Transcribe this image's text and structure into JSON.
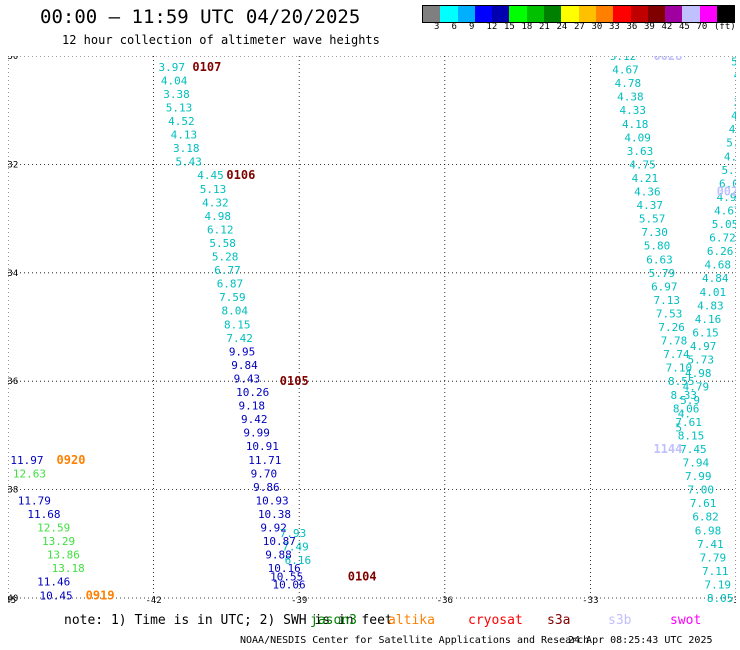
{
  "header": {
    "title": "00:00 – 11:59 UTC 04/20/2025",
    "subtitle": "12 hour collection of altimeter wave heights"
  },
  "colorbar": {
    "colors": [
      "#7f7f7f",
      "#00ffff",
      "#00b0ff",
      "#0000ff",
      "#0000b0",
      "#00ff00",
      "#00c000",
      "#008000",
      "#ffff00",
      "#ffc000",
      "#ff8000",
      "#ff0000",
      "#c00000",
      "#800000",
      "#a000a0",
      "#c0c0ff",
      "#ff00ff",
      "#000000"
    ],
    "labels": [
      "3",
      "6",
      "9",
      "12",
      "15",
      "18",
      "21",
      "24",
      "27",
      "30",
      "33",
      "36",
      "39",
      "42",
      "45",
      "70",
      "(ft)"
    ]
  },
  "chart_data": {
    "type": "scatter",
    "xlim": [
      -45,
      -30
    ],
    "ylim": [
      -40,
      -30
    ],
    "x_ticks": [
      -45,
      -42,
      -39,
      -36,
      -33,
      -30
    ],
    "y_ticks": [
      -30,
      -32,
      -34,
      -36,
      -38,
      -40
    ],
    "x_tick_labels": [
      "-45",
      "-42",
      "-39",
      "-36",
      "-33",
      "-30"
    ],
    "y_tick_labels": [
      "-30",
      "-32",
      "-34",
      "-36",
      "-38",
      "-40"
    ],
    "grid": true,
    "legend_placement": "bottom",
    "series": [
      {
        "color": "#00bfbf",
        "points": [
          [
            -41.9,
            -30.2,
            "3.97"
          ],
          [
            -41.85,
            -30.45,
            "4.04"
          ],
          [
            -41.8,
            -30.7,
            "3.38"
          ],
          [
            -41.75,
            -30.95,
            "5.13"
          ],
          [
            -41.7,
            -31.2,
            "4.52"
          ],
          [
            -41.65,
            -31.45,
            "4.13"
          ],
          [
            -41.6,
            -31.7,
            "3.18"
          ],
          [
            -41.55,
            -31.95,
            "5.43"
          ],
          [
            -41.1,
            -32.2,
            "4.45"
          ],
          [
            -41.05,
            -32.45,
            "5.13"
          ],
          [
            -41.0,
            -32.7,
            "4.32"
          ],
          [
            -40.95,
            -32.95,
            "4.98"
          ],
          [
            -40.9,
            -33.2,
            "6.12"
          ],
          [
            -40.85,
            -33.45,
            "5.58"
          ],
          [
            -40.8,
            -33.7,
            "5.28"
          ],
          [
            -40.75,
            -33.95,
            "6.77"
          ],
          [
            -40.7,
            -34.2,
            "6.87"
          ],
          [
            -40.65,
            -34.45,
            "7.59"
          ],
          [
            -40.6,
            -34.7,
            "8.04"
          ],
          [
            -40.55,
            -34.95,
            "8.15"
          ],
          [
            -40.5,
            -35.2,
            "7.42"
          ],
          [
            -39.4,
            -38.8,
            "7.93"
          ],
          [
            -39.35,
            -39.05,
            "7.49"
          ],
          [
            -39.3,
            -39.3,
            "6.16"
          ]
        ]
      },
      {
        "color": "#0000c0",
        "points": [
          [
            -40.45,
            -35.45,
            "9.95"
          ],
          [
            -40.4,
            -35.7,
            "9.84"
          ],
          [
            -40.35,
            -35.95,
            "9.43"
          ],
          [
            -40.3,
            -36.2,
            "10.26"
          ],
          [
            -40.25,
            -36.45,
            "9.18"
          ],
          [
            -40.2,
            -36.7,
            "9.42"
          ],
          [
            -40.15,
            -36.95,
            "9.99"
          ],
          [
            -40.1,
            -37.2,
            "10.91"
          ],
          [
            -40.05,
            -37.45,
            "11.71"
          ],
          [
            -40.0,
            -37.7,
            "9.70"
          ],
          [
            -39.95,
            -37.95,
            "9.86"
          ],
          [
            -39.9,
            -38.2,
            "10.93"
          ],
          [
            -39.85,
            -38.45,
            "10.38"
          ],
          [
            -39.8,
            -38.7,
            "9.92"
          ],
          [
            -39.75,
            -38.95,
            "10.87"
          ],
          [
            -39.7,
            -39.2,
            "9.88"
          ],
          [
            -39.65,
            -39.45,
            "10.16"
          ],
          [
            -39.6,
            -39.6,
            "10.55"
          ],
          [
            -39.55,
            -39.75,
            "10.06"
          ],
          [
            -44.95,
            -37.45,
            "11.97"
          ],
          [
            -44.8,
            -38.2,
            "11.79"
          ],
          [
            -44.6,
            -38.45,
            "11.68"
          ],
          [
            -44.4,
            -39.7,
            "11.46"
          ],
          [
            -44.35,
            -39.95,
            "10.45"
          ],
          [
            -44.25,
            -40.2,
            "10.23"
          ],
          [
            -44.1,
            -40.45,
            "10.51"
          ],
          [
            -44.0,
            -40.7,
            "9.50"
          ]
        ]
      },
      {
        "color": "#40e040",
        "points": [
          [
            -44.9,
            -37.7,
            "12.63"
          ],
          [
            -44.4,
            -38.7,
            "12.59"
          ],
          [
            -44.3,
            -38.95,
            "13.29"
          ],
          [
            -44.2,
            -39.2,
            "13.86"
          ],
          [
            -44.1,
            -39.45,
            "13.18"
          ]
        ]
      },
      {
        "color": "#00bfbf",
        "points": [
          [
            -32.6,
            -30.0,
            "5.12"
          ],
          [
            -32.55,
            -30.25,
            "4.67"
          ],
          [
            -32.5,
            -30.5,
            "4.78"
          ],
          [
            -32.45,
            -30.75,
            "4.38"
          ],
          [
            -32.4,
            -31.0,
            "4.33"
          ],
          [
            -32.35,
            -31.25,
            "4.18"
          ],
          [
            -32.3,
            -31.5,
            "4.09"
          ],
          [
            -32.25,
            -31.75,
            "3.63"
          ],
          [
            -32.2,
            -32.0,
            "4.75"
          ],
          [
            -32.15,
            -32.25,
            "4.21"
          ],
          [
            -32.1,
            -32.5,
            "4.36"
          ],
          [
            -32.05,
            -32.75,
            "4.37"
          ],
          [
            -32.0,
            -33.0,
            "5.57"
          ],
          [
            -31.95,
            -33.25,
            "7.30"
          ],
          [
            -31.9,
            -33.5,
            "5.80"
          ],
          [
            -31.85,
            -33.75,
            "6.63"
          ],
          [
            -31.8,
            -34.0,
            "5.79"
          ],
          [
            -31.75,
            -34.25,
            "6.97"
          ],
          [
            -31.7,
            -34.5,
            "7.13"
          ],
          [
            -31.65,
            -34.75,
            "7.53"
          ],
          [
            -31.6,
            -35.0,
            "7.26"
          ],
          [
            -31.55,
            -35.25,
            "7.78"
          ],
          [
            -31.5,
            -35.5,
            "7.74"
          ],
          [
            -31.45,
            -35.75,
            "7.10"
          ],
          [
            -31.4,
            -36.0,
            "8.55"
          ],
          [
            -31.35,
            -36.25,
            "8.33"
          ],
          [
            -31.3,
            -36.5,
            "8.06"
          ],
          [
            -31.25,
            -36.75,
            "7.61"
          ],
          [
            -31.2,
            -37.0,
            "8.15"
          ],
          [
            -31.15,
            -37.25,
            "7.45"
          ],
          [
            -31.1,
            -37.5,
            "7.94"
          ],
          [
            -31.05,
            -37.75,
            "7.99"
          ],
          [
            -31.0,
            -38.0,
            "7.00"
          ],
          [
            -30.95,
            -38.25,
            "7.61"
          ],
          [
            -30.9,
            -38.5,
            "6.82"
          ],
          [
            -30.85,
            -38.75,
            "6.98"
          ],
          [
            -30.8,
            -39.0,
            "7.41"
          ],
          [
            -30.75,
            -39.25,
            "7.79"
          ],
          [
            -30.7,
            -39.5,
            "7.11"
          ],
          [
            -30.65,
            -39.75,
            "7.19"
          ],
          [
            -30.6,
            -40.0,
            "8.05"
          ],
          [
            -30.55,
            -40.25,
            "7.50"
          ],
          [
            -30.5,
            -40.5,
            "6.97"
          ],
          [
            -30.1,
            -30.1,
            "5.27"
          ],
          [
            -30.05,
            -30.35,
            "4.33"
          ],
          [
            -30.0,
            -30.6,
            "4.05"
          ],
          [
            -30.05,
            -30.85,
            "3.34"
          ],
          [
            -30.1,
            -31.1,
            "4.47"
          ],
          [
            -30.15,
            -31.35,
            "4.14"
          ],
          [
            -30.2,
            -31.6,
            "5.07"
          ],
          [
            -30.25,
            -31.85,
            "4.85"
          ],
          [
            -30.3,
            -32.1,
            "5.12"
          ],
          [
            -30.35,
            -32.35,
            "6.05"
          ],
          [
            -30.4,
            -32.6,
            "4.91"
          ],
          [
            -30.45,
            -32.85,
            "4.67"
          ],
          [
            -30.5,
            -33.1,
            "5.05"
          ],
          [
            -30.55,
            -33.35,
            "6.72"
          ],
          [
            -30.6,
            -33.6,
            "6.26"
          ],
          [
            -30.65,
            -33.85,
            "4.68"
          ],
          [
            -30.7,
            -34.1,
            "4.84"
          ],
          [
            -30.75,
            -34.35,
            "4.01"
          ],
          [
            -30.8,
            -34.6,
            "4.83"
          ],
          [
            -30.85,
            -34.85,
            "4.16"
          ],
          [
            -30.9,
            -35.1,
            "6.15"
          ],
          [
            -30.95,
            -35.35,
            "4.97"
          ],
          [
            -31.0,
            -35.6,
            "5.73"
          ],
          [
            -31.05,
            -35.85,
            "4.98"
          ],
          [
            -31.1,
            -36.1,
            "4.79"
          ],
          [
            -31.15,
            -36.35,
            "5.9"
          ],
          [
            -31.2,
            -36.6,
            "4."
          ],
          [
            -31.25,
            -36.85,
            "5"
          ]
        ]
      }
    ],
    "pass_labels": [
      {
        "text": "0107",
        "color": "#800000",
        "x": -41.2,
        "y": -30.2
      },
      {
        "text": "0106",
        "color": "#800000",
        "x": -40.5,
        "y": -32.2
      },
      {
        "text": "0105",
        "color": "#800000",
        "x": -39.4,
        "y": -36.0
      },
      {
        "text": "0104",
        "color": "#800000",
        "x": -38.0,
        "y": -39.6
      },
      {
        "text": "0920",
        "color": "#ff8000",
        "x": -44.0,
        "y": -37.45
      },
      {
        "text": "0919",
        "color": "#ff8000",
        "x": -43.4,
        "y": -39.95
      },
      {
        "text": "0028",
        "color": "#c0c0ff",
        "x": -31.7,
        "y": -30.0
      },
      {
        "text": "0027",
        "color": "#c0c0ff",
        "x": -30.4,
        "y": -32.5
      },
      {
        "text": "0143",
        "color": "#c0c0ff",
        "x": -30.0,
        "y": -34.0
      },
      {
        "text": "1144",
        "color": "#c0c0ff",
        "x": -31.7,
        "y": -37.25
      }
    ]
  },
  "footer": {
    "note": "note: 1) Time is in UTC; 2) SWH is in feet",
    "legend": [
      {
        "name": "jason3",
        "color": "#008000"
      },
      {
        "name": "altika",
        "color": "#ff8000"
      },
      {
        "name": "cryosat",
        "color": "#ff0000"
      },
      {
        "name": "s3a",
        "color": "#800000"
      },
      {
        "name": "s3b",
        "color": "#c0c0ff"
      },
      {
        "name": "swot",
        "color": "#ff00ff"
      }
    ],
    "credit": "NOAA/NESDIS Center for Satellite Applications and Research",
    "timestamp": "24 Apr 08:25:43 UTC 2025"
  }
}
